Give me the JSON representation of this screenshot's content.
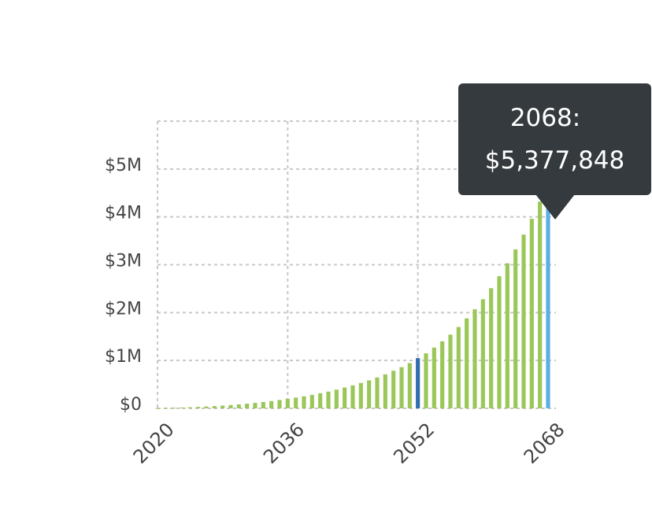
{
  "chart_data": {
    "type": "bar",
    "title": "",
    "xlabel": "",
    "ylabel": "",
    "x_tick_labels": [
      "2020",
      "2036",
      "2052",
      "2068"
    ],
    "y_tick_labels": [
      "$0",
      "$1M",
      "$2M",
      "$3M",
      "$4M",
      "$5M"
    ],
    "y_ticks": [
      0,
      1000000,
      2000000,
      3000000,
      4000000,
      5000000
    ],
    "ylim": [
      0,
      6000000
    ],
    "xlim": [
      2020,
      2068
    ],
    "grid": true,
    "years": [
      2020,
      2021,
      2022,
      2023,
      2024,
      2025,
      2026,
      2027,
      2028,
      2029,
      2030,
      2031,
      2032,
      2033,
      2034,
      2035,
      2036,
      2037,
      2038,
      2039,
      2040,
      2041,
      2042,
      2043,
      2044,
      2045,
      2046,
      2047,
      2048,
      2049,
      2050,
      2051,
      2052,
      2053,
      2054,
      2055,
      2056,
      2057,
      2058,
      2059,
      2060,
      2061,
      2062,
      2063,
      2064,
      2065,
      2066,
      2067,
      2068
    ],
    "values": [
      5000,
      8000,
      12000,
      17000,
      23000,
      30000,
      38000,
      47000,
      57000,
      68000,
      82000,
      97000,
      113000,
      132000,
      152000,
      175000,
      200000,
      225000,
      252000,
      282000,
      315000,
      350000,
      390000,
      435000,
      480000,
      530000,
      585000,
      645000,
      710000,
      785000,
      860000,
      945000,
      1050000,
      1150000,
      1270000,
      1400000,
      1540000,
      1700000,
      1880000,
      2070000,
      2280000,
      2510000,
      2760000,
      3030000,
      3320000,
      3630000,
      3960000,
      4320000,
      5377848
    ],
    "highlight_years": [
      2052,
      2068
    ],
    "colors": {
      "bar": "#9bc759",
      "highlight_dark": "#2f6fae",
      "highlight_light": "#5aaee3",
      "grid": "#c8c8c8",
      "tooltip_bg": "#353a3e"
    }
  },
  "tooltip": {
    "line1": "2068:",
    "line2": "$5,377,848"
  }
}
